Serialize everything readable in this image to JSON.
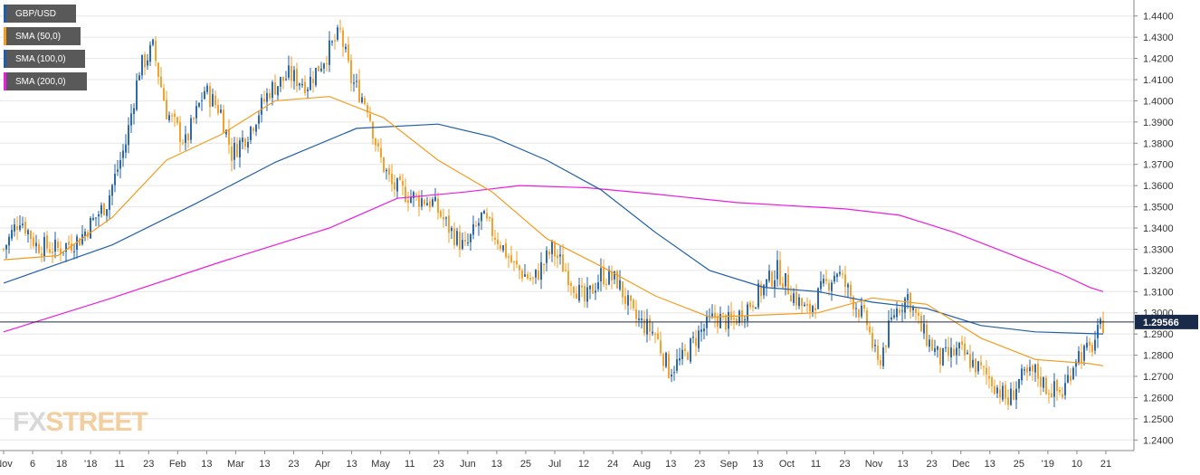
{
  "legend": [
    {
      "label": "GBP/USD",
      "color": "#1f5fa8"
    },
    {
      "label": "SMA (50,0)",
      "color": "#f39c1f"
    },
    {
      "label": "SMA (100,0)",
      "color": "#1f5fa8"
    },
    {
      "label": "SMA (200,0)",
      "color": "#e91ee0"
    }
  ],
  "watermark": {
    "part1": "FX",
    "part2": "STREET"
  },
  "price_label": "1.29566",
  "chart_data": {
    "type": "candlestick",
    "title": "",
    "ylim": [
      1.235,
      1.445
    ],
    "y_ticks": [
      1.24,
      1.25,
      1.26,
      1.27,
      1.28,
      1.29,
      1.3,
      1.31,
      1.32,
      1.33,
      1.34,
      1.35,
      1.36,
      1.37,
      1.38,
      1.39,
      1.4,
      1.41,
      1.42,
      1.43,
      1.44
    ],
    "x_labels": [
      "Nov",
      "6",
      "18",
      "'18",
      "11",
      "23",
      "Feb",
      "13",
      "Mar",
      "13",
      "23",
      "Apr",
      "13",
      "May",
      "11",
      "23",
      "Jun",
      "13",
      "25",
      "Jul",
      "12",
      "24",
      "Aug",
      "13",
      "23",
      "Sep",
      "13",
      "Oct",
      "11",
      "23",
      "Nov",
      "13",
      "23",
      "Dec",
      "13",
      "25",
      "'19",
      "10",
      "21"
    ],
    "current_price": 1.29566,
    "colors": {
      "up": "#1f5fa8",
      "down": "#f39c1f",
      "sma50": "#f39c1f",
      "sma100": "#1f5fa8",
      "sma200": "#e91ee0",
      "grid": "#e6e6e6",
      "price_line": "#1a2a4a"
    },
    "anchors": [
      [
        0,
        1.33
      ],
      [
        6,
        1.345
      ],
      [
        12,
        1.332
      ],
      [
        20,
        1.33
      ],
      [
        28,
        1.335
      ],
      [
        38,
        1.352
      ],
      [
        45,
        1.38
      ],
      [
        50,
        1.415
      ],
      [
        55,
        1.425
      ],
      [
        60,
        1.395
      ],
      [
        67,
        1.38
      ],
      [
        74,
        1.405
      ],
      [
        80,
        1.395
      ],
      [
        84,
        1.375
      ],
      [
        90,
        1.385
      ],
      [
        98,
        1.405
      ],
      [
        105,
        1.412
      ],
      [
        112,
        1.408
      ],
      [
        118,
        1.42
      ],
      [
        124,
        1.432
      ],
      [
        128,
        1.41
      ],
      [
        134,
        1.398
      ],
      [
        138,
        1.375
      ],
      [
        143,
        1.36
      ],
      [
        150,
        1.355
      ],
      [
        158,
        1.352
      ],
      [
        164,
        1.34
      ],
      [
        170,
        1.33
      ],
      [
        176,
        1.345
      ],
      [
        182,
        1.335
      ],
      [
        188,
        1.322
      ],
      [
        195,
        1.315
      ],
      [
        202,
        1.33
      ],
      [
        208,
        1.318
      ],
      [
        214,
        1.305
      ],
      [
        220,
        1.318
      ],
      [
        226,
        1.315
      ],
      [
        232,
        1.298
      ],
      [
        240,
        1.29
      ],
      [
        245,
        1.273
      ],
      [
        250,
        1.278
      ],
      [
        256,
        1.29
      ],
      [
        262,
        1.298
      ],
      [
        268,
        1.295
      ],
      [
        274,
        1.303
      ],
      [
        280,
        1.312
      ],
      [
        285,
        1.32
      ],
      [
        290,
        1.31
      ],
      [
        296,
        1.3
      ],
      [
        301,
        1.31
      ],
      [
        307,
        1.32
      ],
      [
        312,
        1.308
      ],
      [
        318,
        1.295
      ],
      [
        322,
        1.275
      ],
      [
        328,
        1.3
      ],
      [
        333,
        1.308
      ],
      [
        338,
        1.292
      ],
      [
        345,
        1.278
      ],
      [
        352,
        1.282
      ],
      [
        358,
        1.275
      ],
      [
        364,
        1.268
      ],
      [
        370,
        1.258
      ],
      [
        374,
        1.268
      ],
      [
        380,
        1.272
      ],
      [
        384,
        1.265
      ],
      [
        390,
        1.262
      ],
      [
        395,
        1.28
      ],
      [
        400,
        1.282
      ],
      [
        405,
        1.295
      ]
    ],
    "sma50_points": [
      [
        0,
        1.325
      ],
      [
        20,
        1.327
      ],
      [
        40,
        1.345
      ],
      [
        60,
        1.372
      ],
      [
        80,
        1.384
      ],
      [
        100,
        1.4
      ],
      [
        120,
        1.402
      ],
      [
        140,
        1.392
      ],
      [
        160,
        1.372
      ],
      [
        180,
        1.357
      ],
      [
        200,
        1.335
      ],
      [
        220,
        1.322
      ],
      [
        240,
        1.308
      ],
      [
        260,
        1.298
      ],
      [
        280,
        1.299
      ],
      [
        300,
        1.3
      ],
      [
        320,
        1.307
      ],
      [
        340,
        1.304
      ],
      [
        360,
        1.288
      ],
      [
        380,
        1.278
      ],
      [
        400,
        1.276
      ],
      [
        405,
        1.275
      ]
    ],
    "sma100_points": [
      [
        0,
        1.314
      ],
      [
        40,
        1.332
      ],
      [
        70,
        1.351
      ],
      [
        100,
        1.371
      ],
      [
        130,
        1.387
      ],
      [
        160,
        1.389
      ],
      [
        180,
        1.383
      ],
      [
        200,
        1.372
      ],
      [
        220,
        1.358
      ],
      [
        240,
        1.338
      ],
      [
        260,
        1.32
      ],
      [
        280,
        1.312
      ],
      [
        300,
        1.31
      ],
      [
        320,
        1.305
      ],
      [
        340,
        1.302
      ],
      [
        360,
        1.294
      ],
      [
        380,
        1.291
      ],
      [
        405,
        1.29
      ]
    ],
    "sma200_points": [
      [
        0,
        1.291
      ],
      [
        40,
        1.307
      ],
      [
        80,
        1.324
      ],
      [
        120,
        1.34
      ],
      [
        145,
        1.354
      ],
      [
        170,
        1.357
      ],
      [
        190,
        1.36
      ],
      [
        215,
        1.359
      ],
      [
        240,
        1.356
      ],
      [
        270,
        1.352
      ],
      [
        310,
        1.349
      ],
      [
        330,
        1.346
      ],
      [
        350,
        1.338
      ],
      [
        370,
        1.328
      ],
      [
        390,
        1.318
      ],
      [
        400,
        1.312
      ],
      [
        405,
        1.31
      ]
    ]
  }
}
